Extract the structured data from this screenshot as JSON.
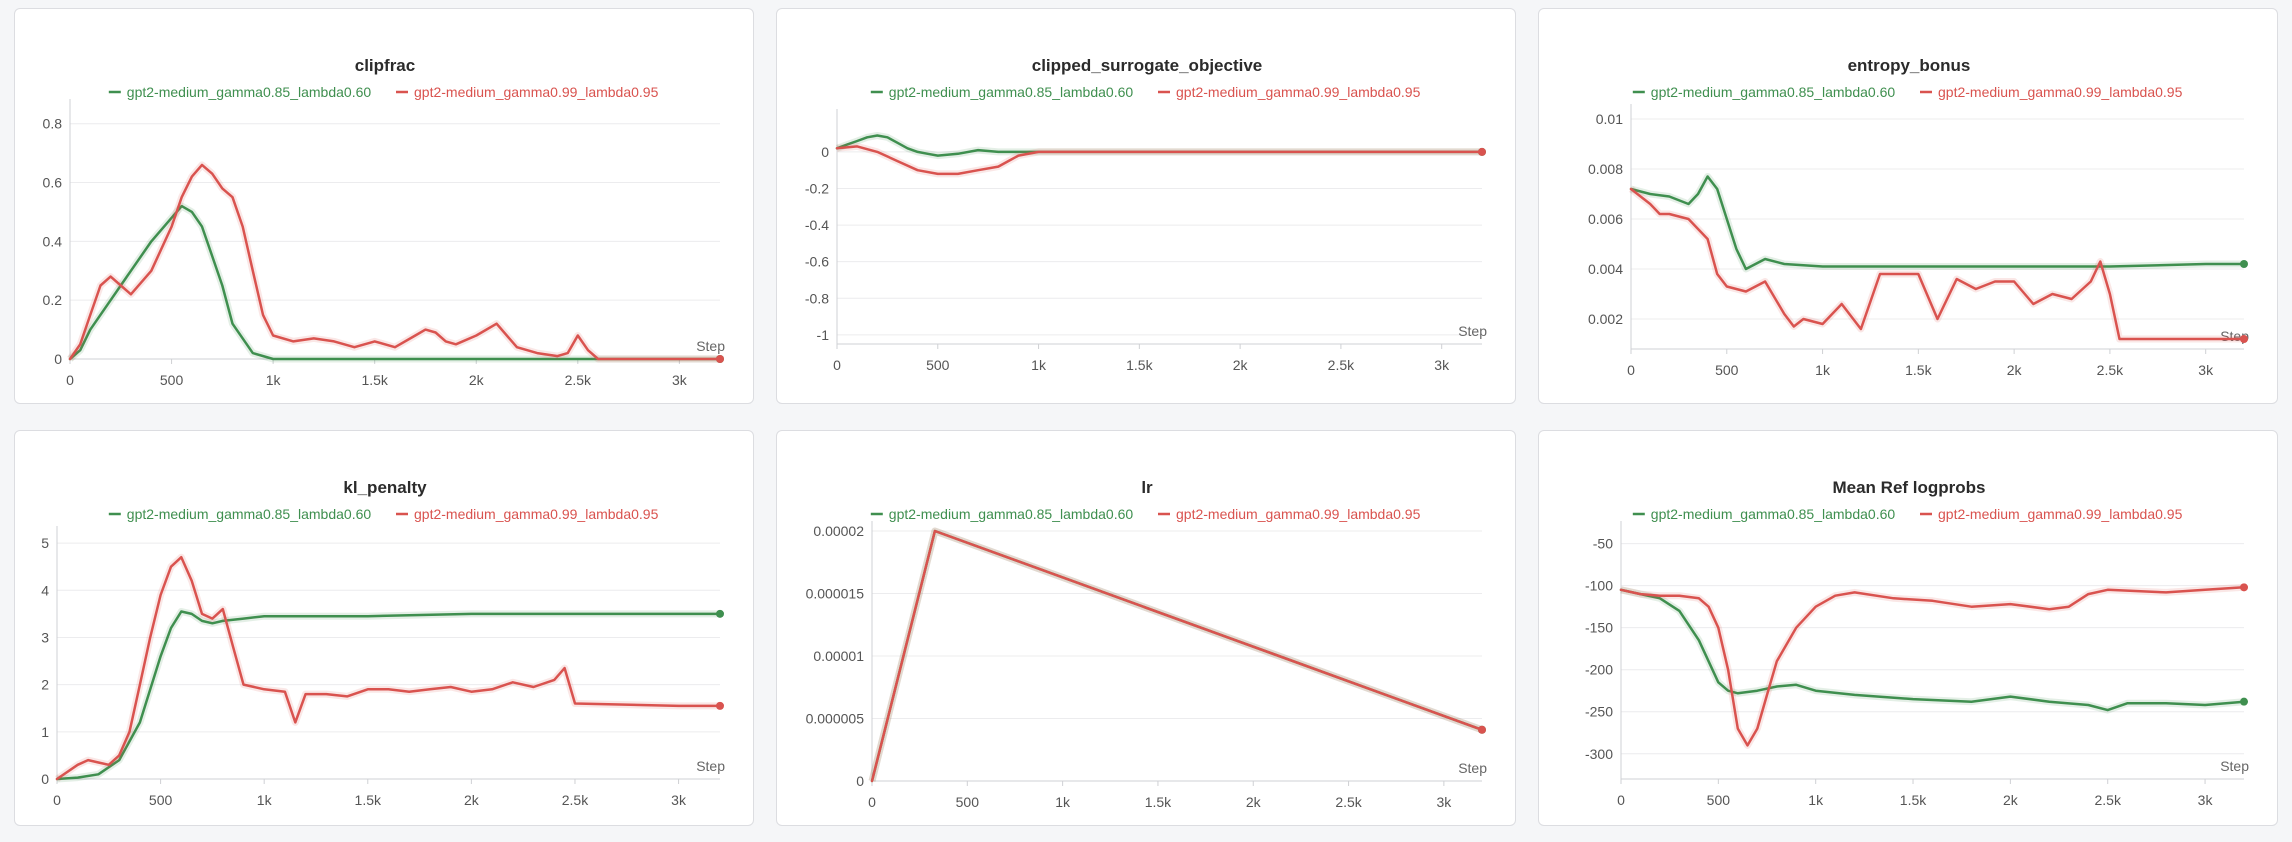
{
  "colors": {
    "green": "#3f8f4f",
    "red": "#d9534f",
    "grid": "#ececee",
    "axis": "#cfd0d4"
  },
  "legend": {
    "green": "gpt2-medium_gamma0.85_lambda0.60",
    "red": "gpt2-medium_gamma0.99_lambda0.95"
  },
  "chart_data": [
    {
      "type": "line",
      "title": "clipfrac",
      "xlabel": "Step",
      "xlim": [
        0,
        3200
      ],
      "ylim": [
        0,
        0.85
      ],
      "xticks": [
        0,
        500,
        1000,
        1500,
        2000,
        2500,
        3000
      ],
      "xtick_labels": [
        "0",
        "500",
        "1k",
        "1.5k",
        "2k",
        "2.5k",
        "3k"
      ],
      "yticks": [
        0,
        0.2,
        0.4,
        0.6,
        0.8
      ],
      "ytick_labels": [
        "0",
        "0.2",
        "0.4",
        "0.6",
        "0.8"
      ],
      "series": [
        {
          "name": "gpt2-medium_gamma0.85_lambda0.60",
          "color": "green",
          "x": [
            0,
            50,
            100,
            200,
            300,
            400,
            500,
            550,
            600,
            650,
            700,
            750,
            800,
            900,
            1000,
            3200
          ],
          "y": [
            0,
            0.03,
            0.1,
            0.2,
            0.3,
            0.4,
            0.48,
            0.52,
            0.5,
            0.45,
            0.35,
            0.25,
            0.12,
            0.02,
            0,
            0
          ]
        },
        {
          "name": "gpt2-medium_gamma0.99_lambda0.95",
          "color": "red",
          "x": [
            0,
            50,
            100,
            150,
            200,
            250,
            300,
            400,
            500,
            550,
            600,
            650,
            700,
            750,
            800,
            850,
            900,
            950,
            1000,
            1100,
            1200,
            1300,
            1400,
            1500,
            1600,
            1700,
            1750,
            1800,
            1850,
            1900,
            2000,
            2100,
            2200,
            2300,
            2400,
            2450,
            2500,
            2550,
            2600,
            3200
          ],
          "y": [
            0,
            0.05,
            0.15,
            0.25,
            0.28,
            0.25,
            0.22,
            0.3,
            0.45,
            0.55,
            0.62,
            0.66,
            0.63,
            0.58,
            0.55,
            0.45,
            0.3,
            0.15,
            0.08,
            0.06,
            0.07,
            0.06,
            0.04,
            0.06,
            0.04,
            0.08,
            0.1,
            0.09,
            0.06,
            0.05,
            0.08,
            0.12,
            0.04,
            0.02,
            0.01,
            0.02,
            0.08,
            0.03,
            0,
            0
          ]
        }
      ]
    },
    {
      "type": "line",
      "title": "clipped_surrogate_objective",
      "xlabel": "Step",
      "xlim": [
        0,
        3200
      ],
      "ylim": [
        -1.05,
        0.18
      ],
      "xticks": [
        0,
        500,
        1000,
        1500,
        2000,
        2500,
        3000
      ],
      "xtick_labels": [
        "0",
        "500",
        "1k",
        "1.5k",
        "2k",
        "2.5k",
        "3k"
      ],
      "yticks": [
        0,
        -0.2,
        -0.4,
        -0.6,
        -0.8,
        -1
      ],
      "ytick_labels": [
        "0",
        "-0.2",
        "-0.4",
        "-0.6",
        "-0.8",
        "-1"
      ],
      "series": [
        {
          "name": "gpt2-medium_gamma0.85_lambda0.60",
          "color": "green",
          "x": [
            0,
            50,
            100,
            150,
            200,
            250,
            300,
            350,
            400,
            450,
            500,
            600,
            700,
            800,
            900,
            1000,
            3200
          ],
          "y": [
            0.02,
            0.04,
            0.06,
            0.08,
            0.09,
            0.08,
            0.05,
            0.02,
            0,
            -0.01,
            -0.02,
            -0.01,
            0.01,
            0,
            0,
            0,
            0
          ]
        },
        {
          "name": "gpt2-medium_gamma0.99_lambda0.95",
          "color": "red",
          "x": [
            0,
            100,
            200,
            300,
            400,
            500,
            600,
            700,
            800,
            850,
            900,
            1000,
            1100,
            1200,
            3200
          ],
          "y": [
            0.02,
            0.03,
            0,
            -0.05,
            -0.1,
            -0.12,
            -0.12,
            -0.1,
            -0.08,
            -0.05,
            -0.02,
            0,
            0,
            0,
            0
          ]
        }
      ]
    },
    {
      "type": "line",
      "title": "entropy_bonus",
      "xlabel": "Step",
      "xlim": [
        0,
        3200
      ],
      "ylim": [
        0.0008,
        0.0102
      ],
      "xticks": [
        0,
        500,
        1000,
        1500,
        2000,
        2500,
        3000
      ],
      "xtick_labels": [
        "0",
        "500",
        "1k",
        "1.5k",
        "2k",
        "2.5k",
        "3k"
      ],
      "yticks": [
        0.002,
        0.004,
        0.006,
        0.008,
        0.01
      ],
      "ytick_labels": [
        "0.002",
        "0.004",
        "0.006",
        "0.008",
        "0.01"
      ],
      "series": [
        {
          "name": "gpt2-medium_gamma0.85_lambda0.60",
          "color": "green",
          "x": [
            0,
            100,
            200,
            300,
            350,
            400,
            450,
            500,
            550,
            600,
            650,
            700,
            800,
            1000,
            1500,
            2000,
            2500,
            3000,
            3200
          ],
          "y": [
            0.0072,
            0.007,
            0.0069,
            0.0066,
            0.007,
            0.0077,
            0.0072,
            0.006,
            0.0048,
            0.004,
            0.0042,
            0.0044,
            0.0042,
            0.0041,
            0.0041,
            0.0041,
            0.0041,
            0.0042,
            0.0042
          ]
        },
        {
          "name": "gpt2-medium_gamma0.99_lambda0.95",
          "color": "red",
          "x": [
            0,
            100,
            150,
            200,
            300,
            400,
            450,
            500,
            600,
            700,
            800,
            850,
            900,
            1000,
            1100,
            1200,
            1300,
            1400,
            1500,
            1600,
            1700,
            1800,
            1900,
            2000,
            2100,
            2200,
            2300,
            2400,
            2450,
            2500,
            2550,
            3200
          ],
          "y": [
            0.0072,
            0.0066,
            0.0062,
            0.0062,
            0.006,
            0.0052,
            0.0038,
            0.0033,
            0.0031,
            0.0035,
            0.0022,
            0.0017,
            0.002,
            0.0018,
            0.0026,
            0.0016,
            0.0038,
            0.0038,
            0.0038,
            0.002,
            0.0036,
            0.0032,
            0.0035,
            0.0035,
            0.0026,
            0.003,
            0.0028,
            0.0035,
            0.0043,
            0.003,
            0.0012,
            0.0012
          ]
        }
      ]
    },
    {
      "type": "line",
      "title": "kl_penalty",
      "xlabel": "Step",
      "xlim": [
        0,
        3200
      ],
      "ylim": [
        0,
        5.15
      ],
      "xticks": [
        0,
        500,
        1000,
        1500,
        2000,
        2500,
        3000
      ],
      "xtick_labels": [
        "0",
        "500",
        "1k",
        "1.5k",
        "2k",
        "2.5k",
        "3k"
      ],
      "yticks": [
        0,
        1,
        2,
        3,
        4,
        5
      ],
      "ytick_labels": [
        "0",
        "1",
        "2",
        "3",
        "4",
        "5"
      ],
      "series": [
        {
          "name": "gpt2-medium_gamma0.85_lambda0.60",
          "color": "green",
          "x": [
            0,
            100,
            200,
            300,
            400,
            500,
            550,
            600,
            650,
            700,
            750,
            800,
            900,
            1000,
            1500,
            2000,
            2500,
            3000,
            3200
          ],
          "y": [
            0,
            0.03,
            0.1,
            0.4,
            1.2,
            2.6,
            3.2,
            3.55,
            3.5,
            3.35,
            3.3,
            3.35,
            3.4,
            3.45,
            3.45,
            3.5,
            3.5,
            3.5,
            3.5
          ]
        },
        {
          "name": "gpt2-medium_gamma0.99_lambda0.95",
          "color": "red",
          "x": [
            0,
            100,
            150,
            200,
            250,
            300,
            350,
            400,
            450,
            500,
            550,
            600,
            650,
            700,
            750,
            800,
            850,
            900,
            1000,
            1100,
            1150,
            1200,
            1300,
            1400,
            1500,
            1600,
            1700,
            1800,
            1900,
            2000,
            2100,
            2200,
            2300,
            2400,
            2450,
            2500,
            3000,
            3200
          ],
          "y": [
            0,
            0.3,
            0.4,
            0.35,
            0.3,
            0.5,
            1,
            2,
            3,
            3.9,
            4.5,
            4.7,
            4.2,
            3.5,
            3.4,
            3.6,
            2.8,
            2,
            1.9,
            1.85,
            1.2,
            1.8,
            1.8,
            1.75,
            1.9,
            1.9,
            1.85,
            1.9,
            1.95,
            1.85,
            1.9,
            2.05,
            1.95,
            2.1,
            2.35,
            1.6,
            1.55,
            1.55
          ]
        }
      ]
    },
    {
      "type": "line",
      "title": "lr",
      "xlabel": "Step",
      "xlim": [
        0,
        3200
      ],
      "ylim": [
        0,
        2e-05
      ],
      "xticks": [
        0,
        500,
        1000,
        1500,
        2000,
        2500,
        3000
      ],
      "xtick_labels": [
        "0",
        "500",
        "1k",
        "1.5k",
        "2k",
        "2.5k",
        "3k"
      ],
      "yticks": [
        0,
        5e-06,
        1e-05,
        1.5e-05,
        2e-05
      ],
      "ytick_labels": [
        "0",
        "0.000005",
        "0.00001",
        "0.000015",
        "0.00002"
      ],
      "series": [
        {
          "name": "gpt2-medium_gamma0.85_lambda0.60",
          "color": "green",
          "x": [
            0,
            330,
            3200
          ],
          "y": [
            0,
            2e-05,
            4.1e-06
          ]
        },
        {
          "name": "gpt2-medium_gamma0.99_lambda0.95",
          "color": "red",
          "x": [
            0,
            330,
            3200
          ],
          "y": [
            0,
            2e-05,
            4.1e-06
          ]
        }
      ]
    },
    {
      "type": "line",
      "title": "Mean Ref logprobs",
      "xlabel": "Step",
      "xlim": [
        0,
        3200
      ],
      "ylim": [
        -330,
        -35
      ],
      "xticks": [
        0,
        500,
        1000,
        1500,
        2000,
        2500,
        3000
      ],
      "xtick_labels": [
        "0",
        "500",
        "1k",
        "1.5k",
        "2k",
        "2.5k",
        "3k"
      ],
      "yticks": [
        -50,
        -100,
        -150,
        -200,
        -250,
        -300
      ],
      "ytick_labels": [
        "-50",
        "-100",
        "-150",
        "-200",
        "-250",
        "-300"
      ],
      "series": [
        {
          "name": "gpt2-medium_gamma0.85_lambda0.60",
          "color": "green",
          "x": [
            0,
            100,
            200,
            300,
            400,
            500,
            550,
            600,
            700,
            800,
            900,
            1000,
            1200,
            1500,
            1800,
            2000,
            2200,
            2400,
            2500,
            2600,
            2800,
            3000,
            3200
          ],
          "y": [
            -105,
            -110,
            -115,
            -130,
            -165,
            -215,
            -225,
            -228,
            -225,
            -220,
            -218,
            -225,
            -230,
            -235,
            -238,
            -232,
            -238,
            -242,
            -248,
            -240,
            -240,
            -242,
            -238
          ]
        },
        {
          "name": "gpt2-medium_gamma0.99_lambda0.95",
          "color": "red",
          "x": [
            0,
            100,
            200,
            300,
            400,
            450,
            500,
            550,
            600,
            650,
            700,
            750,
            800,
            900,
            1000,
            1100,
            1200,
            1400,
            1600,
            1800,
            2000,
            2200,
            2300,
            2400,
            2500,
            2800,
            3000,
            3200
          ],
          "y": [
            -105,
            -110,
            -112,
            -112,
            -115,
            -125,
            -150,
            -200,
            -270,
            -290,
            -270,
            -230,
            -190,
            -150,
            -125,
            -112,
            -108,
            -115,
            -118,
            -125,
            -122,
            -128,
            -125,
            -110,
            -105,
            -108,
            -105,
            -102
          ]
        }
      ]
    }
  ]
}
